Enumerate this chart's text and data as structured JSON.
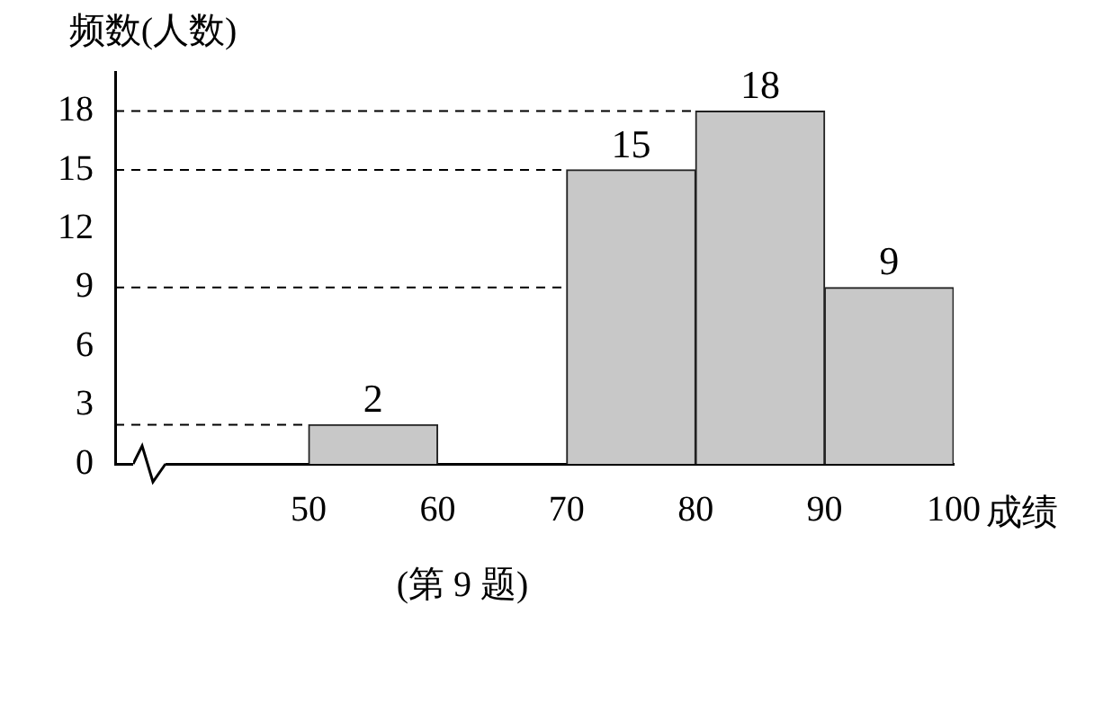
{
  "chart_data": {
    "type": "histogram",
    "ylabel": "频数(人数)",
    "xlabel": "成绩",
    "bins": [
      50,
      60,
      70,
      80,
      90,
      100
    ],
    "values": [
      2,
      0,
      15,
      18,
      9
    ],
    "value_labels": [
      "2",
      null,
      "15",
      "18",
      "9"
    ],
    "color": "#c8c8c8",
    "xlim": [
      35,
      100
    ],
    "xticks": [
      50,
      60,
      70,
      80,
      90,
      100
    ],
    "ylim": [
      0,
      20
    ],
    "yticks": [
      0,
      3,
      6,
      9,
      12,
      15,
      18
    ],
    "ref_lines": [
      {
        "axis": "y",
        "value": 2,
        "line_style": "dashed"
      },
      {
        "axis": "y",
        "value": 9,
        "line_style": "dashed"
      },
      {
        "axis": "y",
        "value": 15,
        "line_style": "dashed"
      },
      {
        "axis": "y",
        "value": 18,
        "line_style": "dashed"
      }
    ],
    "grid": false,
    "legend": false,
    "annotations": [
      "(第 9 题)"
    ]
  }
}
